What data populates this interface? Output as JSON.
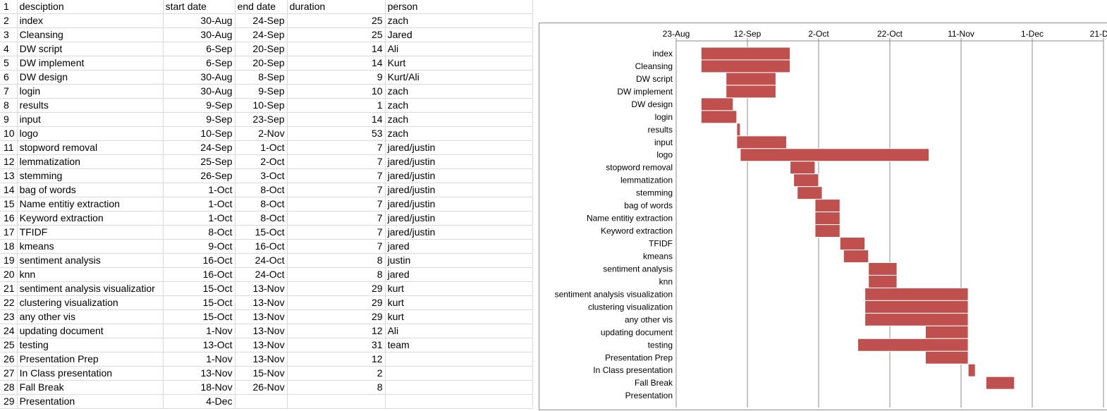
{
  "sheet": {
    "headers": [
      "desciption",
      "start date",
      "end date",
      "duration",
      "person"
    ],
    "rows": [
      [
        "index",
        "30-Aug",
        "24-Sep",
        "25",
        "zach"
      ],
      [
        "Cleansing",
        "30-Aug",
        "24-Sep",
        "25",
        "Jared"
      ],
      [
        "DW script",
        "6-Sep",
        "20-Sep",
        "14",
        "Ali"
      ],
      [
        "DW implement",
        "6-Sep",
        "20-Sep",
        "14",
        "Kurt"
      ],
      [
        "DW design",
        "30-Aug",
        "8-Sep",
        "9",
        "Kurt/Ali"
      ],
      [
        "login",
        "30-Aug",
        "9-Sep",
        "10",
        "zach"
      ],
      [
        "results",
        "9-Sep",
        "10-Sep",
        "1",
        "zach"
      ],
      [
        "input",
        "9-Sep",
        "23-Sep",
        "14",
        "zach"
      ],
      [
        "logo",
        "10-Sep",
        "2-Nov",
        "53",
        "zach"
      ],
      [
        "stopword removal",
        "24-Sep",
        "1-Oct",
        "7",
        "jared/justin"
      ],
      [
        "lemmatization",
        "25-Sep",
        "2-Oct",
        "7",
        "jared/justin"
      ],
      [
        "stemming",
        "26-Sep",
        "3-Oct",
        "7",
        "jared/justin"
      ],
      [
        "bag of words",
        "1-Oct",
        "8-Oct",
        "7",
        "jared/justin"
      ],
      [
        "Name entitiy extraction",
        "1-Oct",
        "8-Oct",
        "7",
        "jared/justin"
      ],
      [
        "Keyword extraction",
        "1-Oct",
        "8-Oct",
        "7",
        "jared/justin"
      ],
      [
        "TFIDF",
        "8-Oct",
        "15-Oct",
        "7",
        "jared/justin"
      ],
      [
        "kmeans",
        "9-Oct",
        "16-Oct",
        "7",
        "jared"
      ],
      [
        "sentiment analysis",
        "16-Oct",
        "24-Oct",
        "8",
        "justin"
      ],
      [
        "knn",
        "16-Oct",
        "24-Oct",
        "8",
        "jared"
      ],
      [
        "sentiment analysis visualizatior",
        "15-Oct",
        "13-Nov",
        "29",
        "kurt"
      ],
      [
        "clustering visualization",
        "15-Oct",
        "13-Nov",
        "29",
        "kurt"
      ],
      [
        "any other vis",
        "15-Oct",
        "13-Nov",
        "29",
        "kurt"
      ],
      [
        "updating document",
        "1-Nov",
        "13-Nov",
        "12",
        "Ali"
      ],
      [
        "testing",
        "13-Oct",
        "13-Nov",
        "31",
        "team"
      ],
      [
        "Presentation Prep",
        "1-Nov",
        "13-Nov",
        "12",
        ""
      ],
      [
        "In Class presentation",
        "13-Nov",
        "15-Nov",
        "2",
        ""
      ],
      [
        "Fall Break",
        "18-Nov",
        "26-Nov",
        "8",
        ""
      ],
      [
        "Presentation",
        "4-Dec",
        "",
        "",
        ""
      ]
    ]
  },
  "chart_data": {
    "type": "bar",
    "orientation": "horizontal-gantt",
    "bar_color": "#c0504d",
    "grid": true,
    "x_axis_position": "top",
    "x_ticks": [
      "23-Aug",
      "12-Sep",
      "2-Oct",
      "22-Oct",
      "11-Nov",
      "1-Dec",
      "21-Dec"
    ],
    "xlim": [
      "2016-08-23",
      "2016-12-21"
    ],
    "categories": [
      "index",
      "Cleansing",
      "DW script",
      "DW implement",
      "DW design",
      "login",
      "results",
      "input",
      "logo",
      "stopword removal",
      "lemmatization",
      "stemming",
      "bag of words",
      "Name entitiy extraction",
      "Keyword extraction",
      "TFIDF",
      "kmeans",
      "sentiment analysis",
      "knn",
      "sentiment analysis visualization",
      "clustering visualization",
      "any other vis",
      "updating document",
      "testing",
      "Presentation Prep",
      "In Class presentation",
      "Fall Break",
      "Presentation"
    ],
    "start": [
      "2016-08-30",
      "2016-08-30",
      "2016-09-06",
      "2016-09-06",
      "2016-08-30",
      "2016-08-30",
      "2016-09-09",
      "2016-09-09",
      "2016-09-10",
      "2016-09-24",
      "2016-09-25",
      "2016-09-26",
      "2016-10-01",
      "2016-10-01",
      "2016-10-01",
      "2016-10-08",
      "2016-10-09",
      "2016-10-16",
      "2016-10-16",
      "2016-10-15",
      "2016-10-15",
      "2016-10-15",
      "2016-11-01",
      "2016-10-13",
      "2016-11-01",
      "2016-11-13",
      "2016-11-18",
      "2016-12-04"
    ],
    "duration_days": [
      25,
      25,
      14,
      14,
      9,
      10,
      1,
      14,
      53,
      7,
      7,
      7,
      7,
      7,
      7,
      7,
      7,
      8,
      8,
      29,
      29,
      29,
      12,
      31,
      12,
      2,
      8,
      0
    ]
  }
}
